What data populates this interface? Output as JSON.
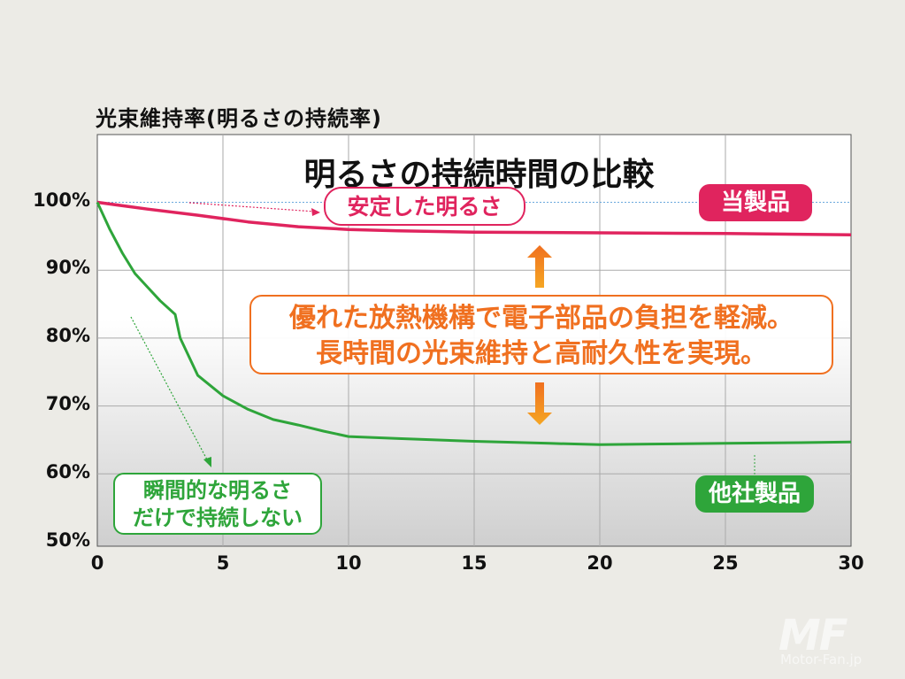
{
  "chart_data": {
    "type": "line",
    "title": "明るさの持続時間の比較",
    "ylabel": "光束維持率(明るさの持続率)",
    "xlabel": "",
    "xlim": [
      0,
      30
    ],
    "ylim": [
      50,
      100
    ],
    "x_ticks": [
      "0",
      "5",
      "10",
      "15",
      "20",
      "25",
      "30"
    ],
    "y_ticks": [
      "50%",
      "60%",
      "70%",
      "80%",
      "90%",
      "100%"
    ],
    "grid": true,
    "series": [
      {
        "name": "当製品",
        "color": "#e0245e",
        "x": [
          0,
          2,
          4,
          6,
          8,
          10,
          12,
          15,
          20,
          25,
          30
        ],
        "y": [
          100,
          99,
          98.1,
          97.1,
          96.4,
          96,
          95.8,
          95.6,
          95.5,
          95.4,
          95.2
        ]
      },
      {
        "name": "他社製品",
        "color": "#2ea53a",
        "x": [
          0,
          0.5,
          1,
          1.5,
          2,
          2.5,
          3.1,
          3.3,
          4,
          5,
          6,
          7,
          8,
          9,
          10,
          12,
          15,
          18,
          20,
          22,
          25,
          28,
          30
        ],
        "y": [
          100,
          96,
          92.5,
          89.5,
          87.5,
          85.5,
          83.5,
          80,
          74.5,
          71.5,
          69.5,
          68,
          67.2,
          66.3,
          65.5,
          65.2,
          64.8,
          64.5,
          64.3,
          64.4,
          64.5,
          64.6,
          64.7
        ]
      }
    ],
    "annotations": {
      "stable": "安定した明るさ",
      "instant_line1": "瞬間的な明るさ",
      "instant_line2": "だけで持続しない",
      "callout_line1": "優れた放熱機構で電子部品の負担を軽減。",
      "callout_line2": "長時間の光束維持と高耐久性を実現。"
    }
  },
  "watermark": {
    "logo": "MF",
    "sub": "Motor-Fan.jp"
  }
}
